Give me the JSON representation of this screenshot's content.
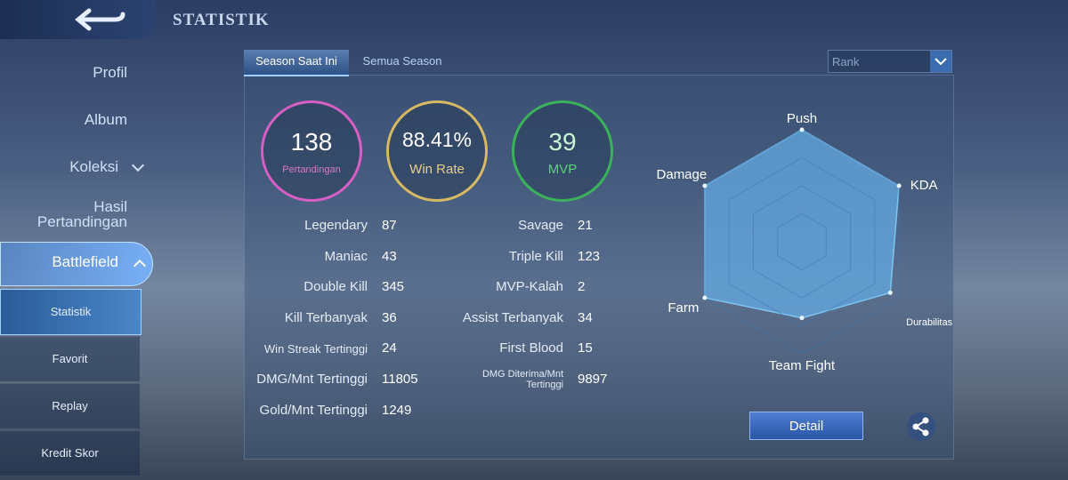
{
  "header": {
    "title": "STATISTIK"
  },
  "sidebar": {
    "items": [
      "Profil",
      "Album",
      "Koleksi",
      "Hasil Pertandingan",
      "Battlefield"
    ],
    "subitems": [
      "Statistik",
      "Favorit",
      "Replay",
      "Kredit Skor"
    ]
  },
  "tabs": [
    "Season Saat Ini",
    "Semua Season"
  ],
  "dropdown": "Rank",
  "summary": [
    {
      "value": 138,
      "label": "Pertandingan"
    },
    {
      "value": "88.41%",
      "label": "Win Rate"
    },
    {
      "value": 39,
      "label": "MVP"
    }
  ],
  "stats_left": [
    [
      "Legendary",
      87
    ],
    [
      "Maniac",
      43
    ],
    [
      "Double Kill",
      345
    ],
    [
      "Kill Terbanyak",
      36
    ],
    [
      "Win Streak Tertinggi",
      24
    ],
    [
      "DMG/Mnt Tertinggi",
      11805
    ],
    [
      "Gold/Mnt Tertinggi",
      1249
    ]
  ],
  "stats_right": [
    [
      "Savage",
      21
    ],
    [
      "Triple Kill",
      123
    ],
    [
      "MVP-Kalah",
      2
    ],
    [
      "Assist Terbanyak",
      34
    ],
    [
      "First Blood",
      15
    ],
    [
      "DMG Diterima/Mnt Tertinggi",
      9897
    ]
  ],
  "radar": {
    "labels": [
      "Push",
      "KDA",
      "Durabilitas",
      "Team Fight",
      "Farm",
      "Damage"
    ],
    "values": [
      100,
      100,
      91,
      68,
      100,
      100
    ],
    "rlim": [
      0,
      100
    ]
  },
  "detail_button": "Detail"
}
